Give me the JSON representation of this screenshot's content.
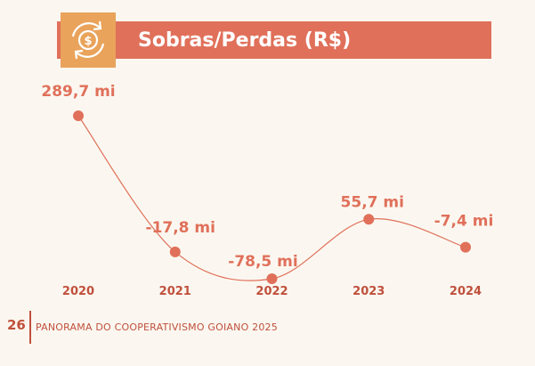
{
  "header": {
    "title": "Sobras/Perdas (R$)",
    "icon": "dollar-cycle-icon"
  },
  "colors": {
    "accent": "#e0705a",
    "icon_bg": "#e9a35b",
    "text": "#c0503c",
    "background": "#fbf7f0"
  },
  "chart_data": {
    "type": "line",
    "title": "Sobras/Perdas (R$)",
    "xlabel": "",
    "ylabel": "",
    "unit": "R$ milhões",
    "x": [
      "2020",
      "2021",
      "2022",
      "2023",
      "2024"
    ],
    "values": [
      289.7,
      -17.8,
      -78.5,
      55.7,
      -7.4
    ],
    "data_labels": [
      "289,7 mi",
      "-17,8 mi",
      "-78,5 mi",
      "55,7 mi",
      "-7,4 mi"
    ],
    "ylim": [
      -85,
      295
    ],
    "grid": false,
    "smooth": true
  },
  "footer": {
    "page_number": "26",
    "text": "PANORAMA DO COOPERATIVISMO GOIANO 2025"
  }
}
